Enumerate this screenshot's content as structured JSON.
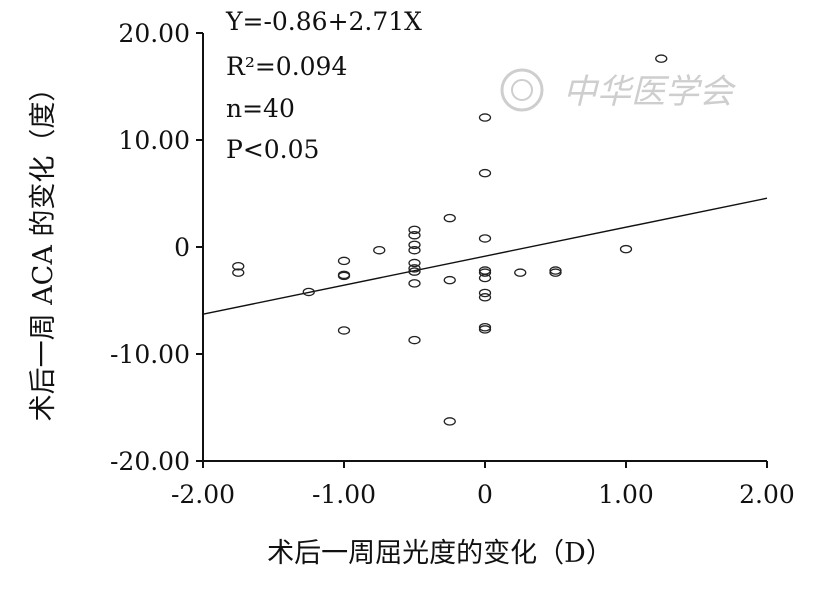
{
  "chart_data": {
    "type": "scatter",
    "xlabel": "术后一周屈光度的变化（D）",
    "ylabel": "术后一周 ACA 的变化（度）",
    "xlim": [
      -2,
      2
    ],
    "ylim": [
      -20,
      20
    ],
    "x_ticks": [
      "-2.00",
      "-1.00",
      "0",
      "1.00",
      "2.00"
    ],
    "y_ticks": [
      "-20.00",
      "-10.00",
      "0",
      "10.00",
      "20.00"
    ],
    "points": [
      {
        "x": -1.75,
        "y": -1.8
      },
      {
        "x": -1.75,
        "y": -2.4
      },
      {
        "x": -1.25,
        "y": -4.2
      },
      {
        "x": -1.0,
        "y": -1.3
      },
      {
        "x": -1.0,
        "y": -2.6
      },
      {
        "x": -1.0,
        "y": -2.7
      },
      {
        "x": -1.0,
        "y": -7.8
      },
      {
        "x": -0.75,
        "y": -0.3
      },
      {
        "x": -0.5,
        "y": 1.6
      },
      {
        "x": -0.5,
        "y": 1.1
      },
      {
        "x": -0.5,
        "y": 0.2
      },
      {
        "x": -0.5,
        "y": -0.3
      },
      {
        "x": -0.5,
        "y": -1.5
      },
      {
        "x": -0.5,
        "y": -2.0
      },
      {
        "x": -0.5,
        "y": -2.3
      },
      {
        "x": -0.5,
        "y": -3.4
      },
      {
        "x": -0.5,
        "y": -8.7
      },
      {
        "x": -0.25,
        "y": 2.7
      },
      {
        "x": -0.25,
        "y": -3.1
      },
      {
        "x": -0.25,
        "y": -16.3
      },
      {
        "x": 0,
        "y": 12.1
      },
      {
        "x": 0,
        "y": 6.9
      },
      {
        "x": 0,
        "y": 0.8
      },
      {
        "x": 0,
        "y": -2.2
      },
      {
        "x": 0,
        "y": -2.4
      },
      {
        "x": 0,
        "y": -2.9
      },
      {
        "x": 0,
        "y": -4.3
      },
      {
        "x": 0,
        "y": -4.7
      },
      {
        "x": 0,
        "y": -7.5
      },
      {
        "x": 0,
        "y": -7.7
      },
      {
        "x": 0.25,
        "y": -2.4
      },
      {
        "x": 0.5,
        "y": -2.2
      },
      {
        "x": 0.5,
        "y": -2.4
      },
      {
        "x": 1.0,
        "y": -0.2
      },
      {
        "x": 1.25,
        "y": 17.6
      }
    ],
    "regression": {
      "intercept": -0.86,
      "slope": 2.71
    },
    "annotations": [
      "Y=-0.86+2.71X",
      "R²=0.094",
      "n=40",
      "P<0.05"
    ],
    "grid": false,
    "legend": "none"
  },
  "watermark_text": "中华医学会"
}
